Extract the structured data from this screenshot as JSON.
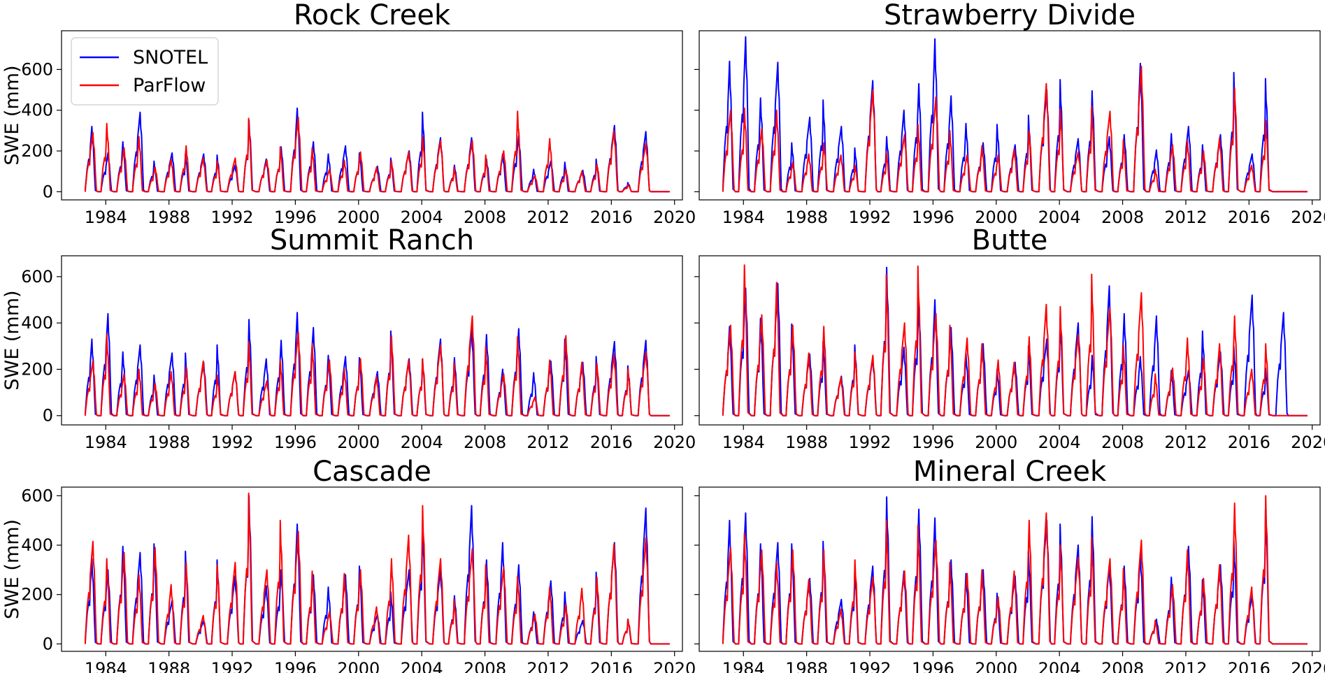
{
  "figure": {
    "legend": {
      "placement": "upper-left of first panel",
      "entries": [
        {
          "label": "SNOTEL",
          "color": "#0000ff"
        },
        {
          "label": "ParFlow",
          "color": "#ff0000"
        }
      ]
    }
  },
  "chart_data": [
    {
      "type": "line",
      "title": "Rock Creek",
      "ylabel": "SWE (mm)",
      "xlim": [
        1981.2,
        2020.5
      ],
      "ylim": [
        -40,
        790
      ],
      "xticks": [
        1984,
        1988,
        1992,
        1996,
        2000,
        2004,
        2008,
        2012,
        2016,
        2020
      ],
      "xtick_labels": [
        "1984",
        "1988",
        "1992",
        "1996",
        "2000",
        "2004",
        "2008",
        "2012",
        "2016",
        "2020"
      ],
      "yticks": [
        0,
        200,
        400,
        600
      ],
      "ytick_labels": [
        "0",
        "200",
        "400",
        "600"
      ],
      "series": [
        {
          "name": "SNOTEL",
          "color": "#0000ff",
          "annual_peaks": [
            320,
            190,
            245,
            390,
            150,
            190,
            185,
            185,
            180,
            130,
            350,
            160,
            220,
            410,
            245,
            185,
            225,
            190,
            125,
            165,
            200,
            390,
            265,
            130,
            265,
            160,
            185,
            275,
            110,
            150,
            145,
            105,
            160,
            325,
            45,
            295
          ]
        },
        {
          "name": "ParFlow",
          "color": "#ff0000",
          "annual_peaks": [
            290,
            335,
            215,
            270,
            120,
            160,
            225,
            165,
            150,
            165,
            360,
            155,
            220,
            365,
            215,
            110,
            155,
            195,
            120,
            150,
            195,
            270,
            250,
            120,
            250,
            180,
            200,
            395,
            80,
            260,
            110,
            100,
            135,
            300,
            35,
            240
          ]
        }
      ]
    },
    {
      "type": "line",
      "title": "Strawberry Divide",
      "ylabel": "",
      "xlim": [
        1981.2,
        2020.5
      ],
      "ylim": [
        -40,
        790
      ],
      "xticks": [
        1984,
        1988,
        1992,
        1996,
        2000,
        2004,
        2008,
        2012,
        2016,
        2020
      ],
      "xtick_labels": [
        "1984",
        "1988",
        "1992",
        "1996",
        "2000",
        "2004",
        "2008",
        "2012",
        "2016",
        "2020"
      ],
      "yticks": [
        0,
        200,
        400,
        600
      ],
      "ytick_labels": [
        "",
        "",
        "",
        ""
      ],
      "series": [
        {
          "name": "SNOTEL",
          "color": "#0000ff",
          "annual_peaks": [
            640,
            760,
            460,
            635,
            240,
            365,
            450,
            320,
            215,
            545,
            270,
            400,
            530,
            750,
            470,
            335,
            240,
            330,
            230,
            375,
            500,
            550,
            260,
            495,
            270,
            280,
            630,
            205,
            285,
            320,
            230,
            280,
            585,
            185,
            555,
            0
          ]
        },
        {
          "name": "ParFlow",
          "color": "#ff0000",
          "annual_peaks": [
            400,
            410,
            310,
            400,
            145,
            185,
            240,
            180,
            130,
            500,
            195,
            280,
            330,
            465,
            300,
            180,
            225,
            180,
            210,
            300,
            530,
            405,
            195,
            420,
            395,
            255,
            615,
            110,
            230,
            250,
            200,
            265,
            510,
            130,
            350,
            0
          ]
        }
      ]
    },
    {
      "type": "line",
      "title": "Summit Ranch",
      "ylabel": "SWE (mm)",
      "xlim": [
        1981.2,
        2020.5
      ],
      "ylim": [
        -40,
        690
      ],
      "xticks": [
        1984,
        1988,
        1992,
        1996,
        2000,
        2004,
        2008,
        2012,
        2016,
        2020
      ],
      "xtick_labels": [
        "1984",
        "1988",
        "1992",
        "1996",
        "2000",
        "2004",
        "2008",
        "2012",
        "2016",
        "2020"
      ],
      "yticks": [
        0,
        200,
        400,
        600
      ],
      "ytick_labels": [
        "0",
        "200",
        "400",
        "600"
      ],
      "series": [
        {
          "name": "SNOTEL",
          "color": "#0000ff",
          "annual_peaks": [
            330,
            440,
            275,
            305,
            175,
            270,
            270,
            230,
            305,
            190,
            415,
            245,
            325,
            445,
            380,
            260,
            255,
            250,
            190,
            365,
            245,
            245,
            330,
            250,
            380,
            350,
            200,
            375,
            185,
            235,
            330,
            230,
            255,
            320,
            215,
            325
          ]
        },
        {
          "name": "ParFlow",
          "color": "#ff0000",
          "annual_peaks": [
            235,
            350,
            180,
            200,
            140,
            190,
            210,
            235,
            175,
            190,
            320,
            150,
            240,
            360,
            310,
            240,
            200,
            245,
            170,
            345,
            240,
            245,
            305,
            230,
            430,
            300,
            180,
            340,
            80,
            240,
            345,
            230,
            225,
            265,
            200,
            275
          ]
        }
      ]
    },
    {
      "type": "line",
      "title": "Butte",
      "ylabel": "",
      "xlim": [
        1981.2,
        2020.5
      ],
      "ylim": [
        -40,
        690
      ],
      "xticks": [
        1984,
        1988,
        1992,
        1996,
        2000,
        2004,
        2008,
        2012,
        2016,
        2020
      ],
      "xtick_labels": [
        "1984",
        "1988",
        "1992",
        "1996",
        "2000",
        "2004",
        "2008",
        "2012",
        "2016",
        "2020"
      ],
      "yticks": [
        0,
        200,
        400,
        600
      ],
      "ytick_labels": [
        "",
        "",
        "",
        ""
      ],
      "series": [
        {
          "name": "SNOTEL",
          "color": "#0000ff",
          "annual_peaks": [
            385,
            550,
            420,
            570,
            395,
            265,
            320,
            170,
            305,
            250,
            640,
            295,
            490,
            500,
            380,
            270,
            310,
            200,
            230,
            300,
            330,
            420,
            400,
            260,
            560,
            440,
            255,
            430,
            195,
            195,
            365,
            275,
            300,
            520,
            205,
            445
          ]
        },
        {
          "name": "ParFlow",
          "color": "#ff0000",
          "annual_peaks": [
            390,
            650,
            435,
            575,
            390,
            270,
            385,
            165,
            275,
            260,
            610,
            400,
            645,
            440,
            390,
            335,
            310,
            240,
            230,
            340,
            480,
            470,
            350,
            610,
            465,
            305,
            530,
            180,
            205,
            335,
            250,
            310,
            430,
            200,
            310,
            0
          ]
        }
      ]
    },
    {
      "type": "line",
      "title": "Cascade",
      "ylabel": "SWE (mm)",
      "xlim": [
        1981.2,
        2020.5
      ],
      "ylim": [
        -30,
        635
      ],
      "xticks": [
        1984,
        1988,
        1992,
        1996,
        2000,
        2004,
        2008,
        2012,
        2016,
        2020
      ],
      "xtick_labels": [
        "1984",
        "1988",
        "1992",
        "1996",
        "2000",
        "2004",
        "2008",
        "2012",
        "2016",
        "2020"
      ],
      "yticks": [
        0,
        200,
        400,
        600
      ],
      "ytick_labels": [
        "0",
        "200",
        "400",
        "600"
      ],
      "series": [
        {
          "name": "SNOTEL",
          "color": "#0000ff",
          "annual_peaks": [
            345,
            300,
            395,
            370,
            405,
            175,
            375,
            95,
            340,
            275,
            600,
            235,
            300,
            485,
            280,
            230,
            280,
            315,
            120,
            210,
            300,
            485,
            300,
            195,
            560,
            340,
            410,
            320,
            130,
            255,
            210,
            95,
            290,
            410,
            100,
            550
          ]
        },
        {
          "name": "ParFlow",
          "color": "#ff0000",
          "annual_peaks": [
            415,
            345,
            370,
            280,
            390,
            240,
            330,
            115,
            320,
            330,
            610,
            300,
            500,
            455,
            295,
            130,
            285,
            300,
            150,
            345,
            440,
            560,
            345,
            180,
            385,
            320,
            310,
            275,
            120,
            230,
            160,
            225,
            270,
            405,
            100,
            430
          ]
        }
      ]
    },
    {
      "type": "line",
      "title": "Mineral Creek",
      "ylabel": "",
      "xlim": [
        1981.2,
        2020.5
      ],
      "ylim": [
        -30,
        635
      ],
      "xticks": [
        1984,
        1988,
        1992,
        1996,
        2000,
        2004,
        2008,
        2012,
        2016,
        2020
      ],
      "xtick_labels": [
        "1984",
        "1988",
        "1992",
        "1996",
        "2000",
        "2004",
        "2008",
        "2012",
        "2016",
        "2020"
      ],
      "yticks": [
        0,
        200,
        400,
        600
      ],
      "ytick_labels": [
        "",
        "",
        "",
        ""
      ],
      "series": [
        {
          "name": "SNOTEL",
          "color": "#0000ff",
          "annual_peaks": [
            500,
            530,
            405,
            410,
            405,
            265,
            415,
            180,
            300,
            315,
            595,
            295,
            545,
            510,
            340,
            285,
            300,
            205,
            275,
            375,
            500,
            485,
            400,
            515,
            320,
            315,
            370,
            100,
            270,
            395,
            260,
            320,
            420,
            195,
            545,
            0
          ]
        },
        {
          "name": "ParFlow",
          "color": "#ff0000",
          "annual_peaks": [
            390,
            450,
            380,
            330,
            380,
            260,
            380,
            140,
            340,
            270,
            500,
            295,
            480,
            420,
            330,
            285,
            300,
            190,
            295,
            500,
            530,
            400,
            350,
            430,
            345,
            305,
            420,
            95,
            240,
            380,
            265,
            320,
            570,
            230,
            600,
            0
          ]
        }
      ]
    }
  ]
}
